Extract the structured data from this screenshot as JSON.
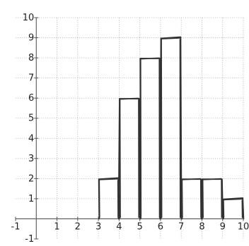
{
  "chart_data": {
    "type": "bar",
    "style": "hand-drawn histogram on dotted grid",
    "bins": [
      {
        "x0": 3,
        "x1": 4,
        "value": 2
      },
      {
        "x0": 4,
        "x1": 5,
        "value": 6
      },
      {
        "x0": 5,
        "x1": 6,
        "value": 8
      },
      {
        "x0": 6,
        "x1": 7,
        "value": 9
      },
      {
        "x0": 7,
        "x1": 8,
        "value": 2
      },
      {
        "x0": 8,
        "x1": 9,
        "value": 2
      },
      {
        "x0": 9,
        "x1": 10,
        "value": 1
      }
    ],
    "title": "",
    "xlabel": "",
    "ylabel": "",
    "xlim": [
      -1,
      10
    ],
    "ylim": [
      -1,
      10
    ],
    "x_ticks": [
      -1,
      1,
      2,
      3,
      4,
      5,
      6,
      7,
      8,
      9,
      10
    ],
    "y_ticks": [
      -1,
      1,
      2,
      3,
      4,
      5,
      6,
      7,
      8,
      9,
      10
    ],
    "grid": true,
    "grid_style": "dotted",
    "bar_color": "#333333",
    "grid_color": "#b9b9b9",
    "background": "#ffffff"
  }
}
